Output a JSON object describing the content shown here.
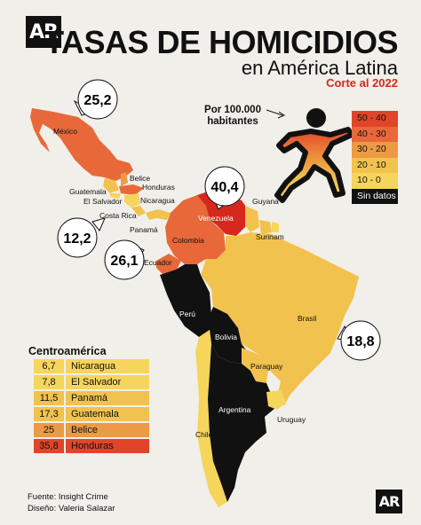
{
  "header": {
    "logo": "AR",
    "title": "TASAS DE HOMICIDIOS",
    "subtitle": "en América Latina",
    "date_note": "Corte al 2022"
  },
  "legend": {
    "unit_label": "Por 100.000 habitantes",
    "ranges": [
      {
        "label": "50 - 40",
        "color": "#e0452a"
      },
      {
        "label": "40 - 30",
        "color": "#e8683a"
      },
      {
        "label": "30 - 20",
        "color": "#ed9a44"
      },
      {
        "label": "20 - 10",
        "color": "#f2c24e"
      },
      {
        "label": "10 - 0",
        "color": "#f6d55c"
      },
      {
        "label": "Sin datos",
        "color": "#111111"
      }
    ]
  },
  "countries": {
    "mexico": "México",
    "belice": "Belice",
    "honduras": "Honduras",
    "guatemala": "Guatemala",
    "nicaragua": "Nicaragua",
    "el_salvador": "El Salvador",
    "costa_rica": "Costa Rica",
    "panama": "Panamá",
    "venezuela": "Venezuela",
    "guyana": "Guyana",
    "surinam": "Surinam",
    "colombia": "Colombia",
    "ecuador": "Ecuador",
    "peru": "Perú",
    "bolivia": "Bolivia",
    "brasil": "Brasil",
    "paraguay": "Paraguay",
    "argentina": "Argentina",
    "chile": "Chile",
    "uruguay": "Uruguay"
  },
  "callouts": {
    "mexico": "25,2",
    "venezuela": "40,4",
    "costa_rica": "12,2",
    "colombia": "26,1",
    "brasil": "18,8"
  },
  "centroamerica": {
    "title": "Centroamérica",
    "rows": [
      {
        "value": "6,7",
        "name": "Nicaragua",
        "color": "#f6d55c"
      },
      {
        "value": "7,8",
        "name": "El Salvador",
        "color": "#f6d55c"
      },
      {
        "value": "11,5",
        "name": "Panamá",
        "color": "#f2c24e"
      },
      {
        "value": "17,3",
        "name": "Guatemala",
        "color": "#f2c24e"
      },
      {
        "value": "25",
        "name": "Belice",
        "color": "#ed9a44"
      },
      {
        "value": "35,8",
        "name": "Honduras",
        "color": "#e8683a"
      }
    ]
  },
  "credits": {
    "source": "Fuente: Insight Crime",
    "design": "Diseño: Valeria Salazar"
  },
  "colors": {
    "black": "#111111",
    "yellow": "#f2c24e",
    "orange": "#ed9a44",
    "red_orange": "#e8683a",
    "red": "#d7281d"
  }
}
